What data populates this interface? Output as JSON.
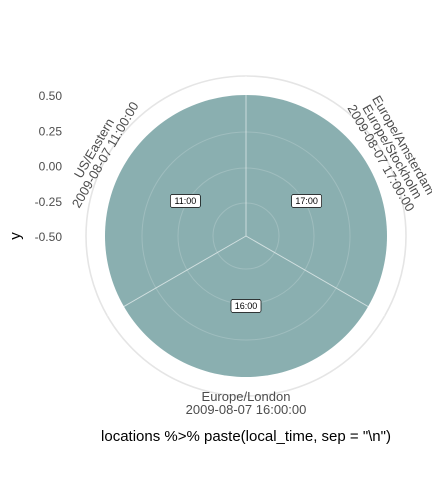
{
  "chart_data": {
    "type": "pie",
    "coord": "polar",
    "xlabel": "locations %>% paste(local_time, sep = \"\\n\")",
    "ylabel": "y",
    "y_ticks": [
      "0.50",
      "0.25",
      "0.00",
      "-0.25",
      "-0.50"
    ],
    "y_tick_values": [
      0.5,
      0.25,
      0.0,
      -0.25,
      -0.5
    ],
    "ylim": [
      -0.5,
      0.5
    ],
    "grid": true,
    "fill_color": "#8aafb0",
    "slices": [
      {
        "category": "Europe/Amsterdam\nEurope/Stockholm\n2009-08-07 17:00:00",
        "value": 1,
        "label": "17:00"
      },
      {
        "category": "Europe/London\n2009-08-07 16:00:00",
        "value": 1,
        "label": "16:00"
      },
      {
        "category": "US/Eastern\n2009-08-07 11:00:00",
        "value": 1,
        "label": "11:00"
      }
    ]
  }
}
